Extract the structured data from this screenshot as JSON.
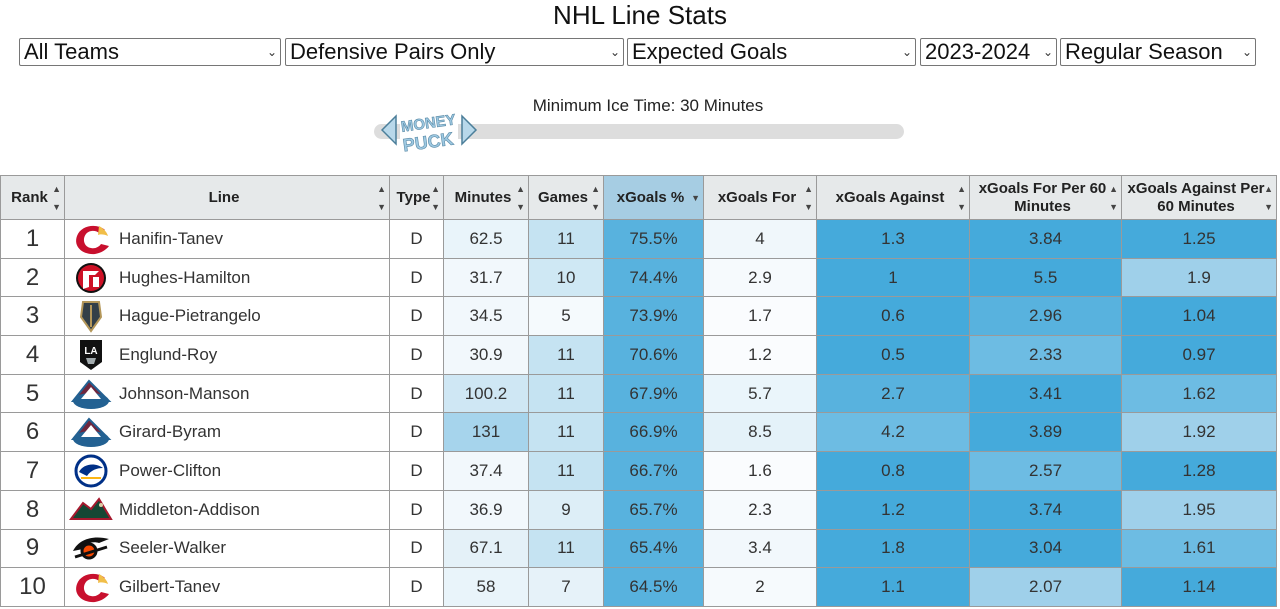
{
  "title": "NHL Line Stats",
  "filters": {
    "team": "All Teams",
    "line_type": "Defensive Pairs Only",
    "stat": "Expected Goals",
    "season": "2023-2024",
    "season_type": "Regular Season"
  },
  "slider": {
    "label": "Minimum Ice Time: 30 Minutes",
    "logo_text": "MONEY PUCK"
  },
  "columns": [
    "Rank",
    "Line",
    "Type",
    "Minutes",
    "Games",
    "xGoals %",
    "xGoals For",
    "xGoals Against",
    "xGoals For Per 60 Minutes",
    "xGoals Against Per 60 Minutes"
  ],
  "sorted_column": "xGoals %",
  "colors": {
    "header_bg": "#e6e9ea",
    "sorted_header_bg": "#a6cde3",
    "flames_red": "#c8102e",
    "devils_red": "#ce1126",
    "avalanche_burgundy": "#6f263d",
    "sabres_blue": "#003087",
    "wild_green": "#154734",
    "flyers_orange": "#f74902",
    "golden_knights_gold": "#b4975a"
  },
  "rows": [
    {
      "rank": "1",
      "team": "flames-logo",
      "line": "Hanifin-Tanev",
      "type": "D",
      "minutes": "62.5",
      "games": "11",
      "xg_pct": "75.5%",
      "xgf": "4",
      "xga": "1.3",
      "xgf60": "3.84",
      "xga60": "1.25"
    },
    {
      "rank": "2",
      "team": "devils-logo",
      "line": "Hughes-Hamilton",
      "type": "D",
      "minutes": "31.7",
      "games": "10",
      "xg_pct": "74.4%",
      "xgf": "2.9",
      "xga": "1",
      "xgf60": "5.5",
      "xga60": "1.9"
    },
    {
      "rank": "3",
      "team": "golden-knights-logo",
      "line": "Hague-Pietrangelo",
      "type": "D",
      "minutes": "34.5",
      "games": "5",
      "xg_pct": "73.9%",
      "xgf": "1.7",
      "xga": "0.6",
      "xgf60": "2.96",
      "xga60": "1.04"
    },
    {
      "rank": "4",
      "team": "kings-logo",
      "line": "Englund-Roy",
      "type": "D",
      "minutes": "30.9",
      "games": "11",
      "xg_pct": "70.6%",
      "xgf": "1.2",
      "xga": "0.5",
      "xgf60": "2.33",
      "xga60": "0.97"
    },
    {
      "rank": "5",
      "team": "avalanche-logo",
      "line": "Johnson-Manson",
      "type": "D",
      "minutes": "100.2",
      "games": "11",
      "xg_pct": "67.9%",
      "xgf": "5.7",
      "xga": "2.7",
      "xgf60": "3.41",
      "xga60": "1.62"
    },
    {
      "rank": "6",
      "team": "avalanche-logo",
      "line": "Girard-Byram",
      "type": "D",
      "minutes": "131",
      "games": "11",
      "xg_pct": "66.9%",
      "xgf": "8.5",
      "xga": "4.2",
      "xgf60": "3.89",
      "xga60": "1.92"
    },
    {
      "rank": "7",
      "team": "sabres-logo",
      "line": "Power-Clifton",
      "type": "D",
      "minutes": "37.4",
      "games": "11",
      "xg_pct": "66.7%",
      "xgf": "1.6",
      "xga": "0.8",
      "xgf60": "2.57",
      "xga60": "1.28"
    },
    {
      "rank": "8",
      "team": "wild-logo",
      "line": "Middleton-Addison",
      "type": "D",
      "minutes": "36.9",
      "games": "9",
      "xg_pct": "65.7%",
      "xgf": "2.3",
      "xga": "1.2",
      "xgf60": "3.74",
      "xga60": "1.95"
    },
    {
      "rank": "9",
      "team": "flyers-logo",
      "line": "Seeler-Walker",
      "type": "D",
      "minutes": "67.1",
      "games": "11",
      "xg_pct": "65.4%",
      "xgf": "3.4",
      "xga": "1.8",
      "xgf60": "3.04",
      "xga60": "1.61"
    },
    {
      "rank": "10",
      "team": "flames-logo",
      "line": "Gilbert-Tanev",
      "type": "D",
      "minutes": "58",
      "games": "7",
      "xg_pct": "64.5%",
      "xgf": "2",
      "xga": "1.1",
      "xgf60": "2.07",
      "xga60": "1.14"
    }
  ],
  "cell_shades": [
    {
      "minutes": "#e9f4fa",
      "games": "#c5e3f2",
      "xg_pct": "#58b2de",
      "xgf": "#f0f7fb",
      "xga": "#45aadb",
      "xgf60": "#45aadb",
      "xga60": "#45aadb"
    },
    {
      "minutes": "#f2f8fc",
      "games": "#cfe8f4",
      "xg_pct": "#58b2de",
      "xgf": "#f6fafd",
      "xga": "#45aadb",
      "xgf60": "#45aadb",
      "xga60": "#9fd0ea"
    },
    {
      "minutes": "#f2f8fc",
      "games": "#f5fafd",
      "xg_pct": "#58b2de",
      "xgf": "#fafcfe",
      "xga": "#45aadb",
      "xgf60": "#58b2de",
      "xga60": "#45aadb"
    },
    {
      "minutes": "#f2f8fc",
      "games": "#c5e3f2",
      "xg_pct": "#58b2de",
      "xgf": "#fafcfe",
      "xga": "#45aadb",
      "xgf60": "#6dbce3",
      "xga60": "#45aadb"
    },
    {
      "minutes": "#cfe7f4",
      "games": "#c5e3f2",
      "xg_pct": "#58b2de",
      "xgf": "#eaf5fb",
      "xga": "#58b2de",
      "xgf60": "#45aadb",
      "xga60": "#6dbce3"
    },
    {
      "minutes": "#a6d4ec",
      "games": "#c5e3f2",
      "xg_pct": "#58b2de",
      "xgf": "#e4f2f9",
      "xga": "#6dbce3",
      "xgf60": "#45aadb",
      "xga60": "#9fd0ea"
    },
    {
      "minutes": "#f2f8fc",
      "games": "#c5e3f2",
      "xg_pct": "#58b2de",
      "xgf": "#fafcfe",
      "xga": "#45aadb",
      "xgf60": "#6dbce3",
      "xga60": "#45aadb"
    },
    {
      "minutes": "#f2f8fc",
      "games": "#ddeef7",
      "xg_pct": "#58b2de",
      "xgf": "#f6fafd",
      "xga": "#45aadb",
      "xgf60": "#45aadb",
      "xga60": "#9fd0ea"
    },
    {
      "minutes": "#e4f1f8",
      "games": "#c5e3f2",
      "xg_pct": "#58b2de",
      "xgf": "#f2f8fc",
      "xga": "#45aadb",
      "xgf60": "#45aadb",
      "xga60": "#6dbce3"
    },
    {
      "minutes": "#e9f4fa",
      "games": "#e6f2f9",
      "xg_pct": "#58b2de",
      "xgf": "#f6fafd",
      "xga": "#45aadb",
      "xgf60": "#9fd0ea",
      "xga60": "#45aadb"
    }
  ]
}
